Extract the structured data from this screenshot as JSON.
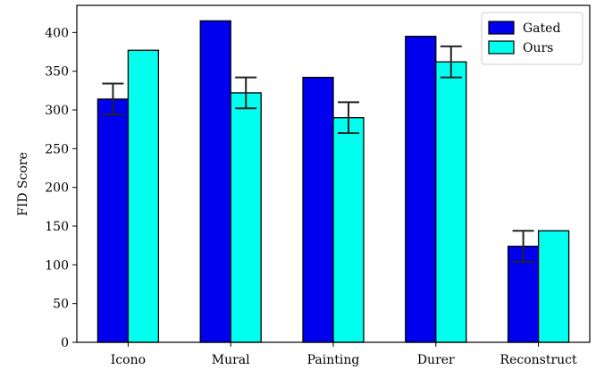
{
  "chart_data": {
    "type": "bar",
    "categories": [
      "Icono",
      "Mural",
      "Painting",
      "Durer",
      "Reconstruct"
    ],
    "series": [
      {
        "name": "Gated",
        "values": [
          314,
          415,
          342,
          395,
          124
        ],
        "error": [
          20,
          null,
          null,
          null,
          20
        ],
        "color": "#0000ee"
      },
      {
        "name": "Ours",
        "values": [
          377,
          322,
          290,
          362,
          144
        ],
        "error": [
          null,
          20,
          20,
          20,
          null
        ],
        "color": "#00ffee"
      }
    ],
    "ylabel": "FID Score",
    "xlabel": "",
    "ylim": [
      0,
      435
    ],
    "yticks": [
      0,
      50,
      100,
      150,
      200,
      250,
      300,
      350,
      400
    ],
    "legend_position": "top-right",
    "grid": false
  }
}
